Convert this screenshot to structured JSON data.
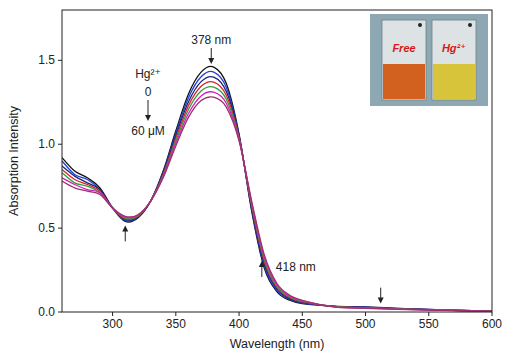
{
  "chart_data": {
    "type": "line",
    "x_label": "Wavelength (nm)",
    "y_label": "Absorption Intensity",
    "x": [
      260,
      270,
      280,
      290,
      300,
      310,
      320,
      330,
      340,
      350,
      360,
      370,
      380,
      390,
      400,
      410,
      420,
      430,
      440,
      450,
      475,
      500,
      525,
      550,
      575,
      600
    ],
    "series": [
      {
        "color": "#111111",
        "values": [
          0.92,
          0.84,
          0.8,
          0.74,
          0.62,
          0.54,
          0.56,
          0.66,
          0.84,
          1.08,
          1.3,
          1.43,
          1.46,
          1.36,
          1.06,
          0.6,
          0.26,
          0.12,
          0.07,
          0.05,
          0.035,
          0.03,
          0.022,
          0.015,
          0.01,
          0.005
        ]
      },
      {
        "color": "#2040d8",
        "values": [
          0.9,
          0.82,
          0.79,
          0.73,
          0.62,
          0.545,
          0.563,
          0.66,
          0.833,
          1.065,
          1.277,
          1.402,
          1.43,
          1.337,
          1.053,
          0.61,
          0.273,
          0.128,
          0.075,
          0.053,
          0.034,
          0.029,
          0.021,
          0.015,
          0.01,
          0.005
        ]
      },
      {
        "color": "#1a237e",
        "values": [
          0.87,
          0.81,
          0.77,
          0.73,
          0.62,
          0.55,
          0.567,
          0.66,
          0.827,
          1.05,
          1.253,
          1.373,
          1.4,
          1.313,
          1.047,
          0.62,
          0.287,
          0.137,
          0.08,
          0.057,
          0.033,
          0.027,
          0.02,
          0.014,
          0.009,
          0.005
        ]
      },
      {
        "color": "#e02028",
        "values": [
          0.85,
          0.79,
          0.76,
          0.72,
          0.62,
          0.555,
          0.57,
          0.66,
          0.82,
          1.035,
          1.23,
          1.345,
          1.37,
          1.29,
          1.04,
          0.63,
          0.3,
          0.145,
          0.085,
          0.06,
          0.033,
          0.026,
          0.019,
          0.014,
          0.009,
          0.005
        ]
      },
      {
        "color": "#2e9e3e",
        "values": [
          0.83,
          0.77,
          0.75,
          0.71,
          0.62,
          0.56,
          0.573,
          0.66,
          0.813,
          1.02,
          1.207,
          1.317,
          1.34,
          1.267,
          1.033,
          0.64,
          0.313,
          0.153,
          0.09,
          0.063,
          0.032,
          0.025,
          0.018,
          0.013,
          0.009,
          0.004
        ]
      },
      {
        "color": "#d020c0",
        "values": [
          0.8,
          0.76,
          0.73,
          0.71,
          0.62,
          0.565,
          0.577,
          0.66,
          0.807,
          1.005,
          1.183,
          1.288,
          1.31,
          1.243,
          1.027,
          0.65,
          0.327,
          0.162,
          0.095,
          0.067,
          0.031,
          0.023,
          0.017,
          0.013,
          0.008,
          0.004
        ]
      },
      {
        "color": "#a0306e",
        "values": [
          0.78,
          0.74,
          0.72,
          0.7,
          0.62,
          0.57,
          0.58,
          0.66,
          0.8,
          0.99,
          1.16,
          1.26,
          1.28,
          1.22,
          1.02,
          0.66,
          0.34,
          0.17,
          0.1,
          0.07,
          0.03,
          0.022,
          0.016,
          0.012,
          0.008,
          0.004
        ]
      }
    ],
    "xlim": [
      260,
      600
    ],
    "xticks": [
      300,
      350,
      400,
      450,
      500,
      550,
      600
    ],
    "ylim": [
      0,
      1.8
    ],
    "yticks": [
      {
        "value": 0,
        "label": "0.0"
      },
      0.5,
      {
        "value": 1,
        "label": "1.0"
      },
      1.5
    ],
    "grid": false,
    "annotations": [
      {
        "text": "378 nm",
        "x": 378,
        "direction": "down"
      },
      {
        "text": "418 nm",
        "x": 418,
        "direction": "up"
      },
      {
        "x": 310,
        "direction": "up"
      },
      {
        "x": 512,
        "direction": "down"
      }
    ],
    "titration": {
      "label": "Hg²⁺",
      "start": "0",
      "end": "60 μM"
    },
    "inset": {
      "labels": [
        "Free",
        "Hg²⁺"
      ]
    }
  }
}
